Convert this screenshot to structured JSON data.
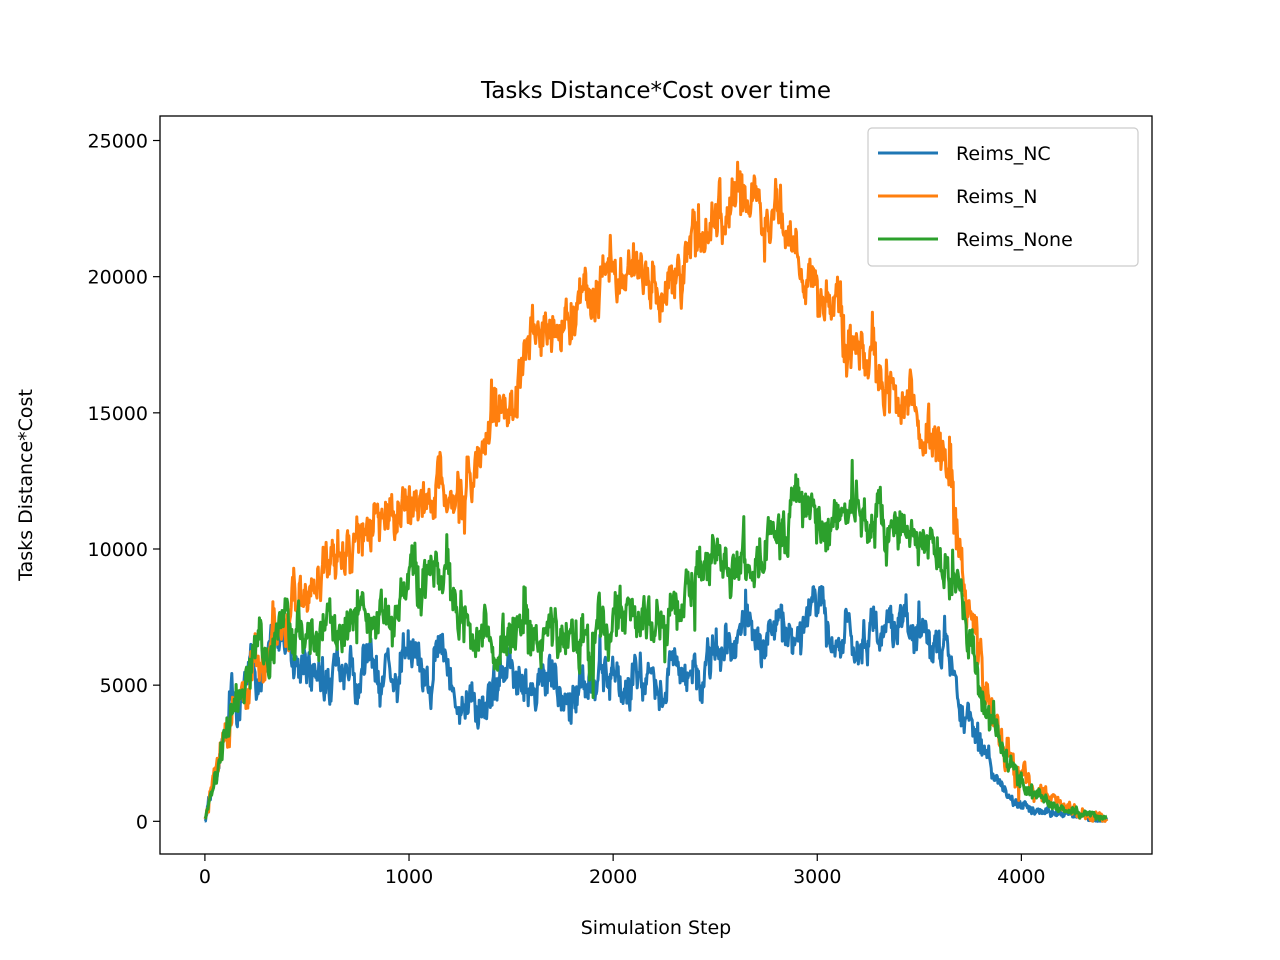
{
  "chart_data": {
    "type": "line",
    "title": "Tasks Distance*Cost over time",
    "xlabel": "Simulation Step",
    "ylabel": "Tasks Distance*Cost",
    "xlim": [
      -220,
      4640
    ],
    "ylim": [
      -1200,
      25900
    ],
    "xticks": [
      0,
      1000,
      2000,
      3000,
      4000
    ],
    "xtick_labels": [
      "0",
      "1000",
      "2000",
      "3000",
      "4000"
    ],
    "yticks": [
      0,
      5000,
      10000,
      15000,
      20000,
      25000
    ],
    "ytick_labels": [
      "0",
      "5000",
      "10000",
      "15000",
      "20000",
      "25000"
    ],
    "grid": false,
    "legend_position": "top-right",
    "series": [
      {
        "name": "Reims_NC",
        "color": "#1f77b4",
        "noise": 900,
        "x": [
          0,
          100,
          200,
          300,
          380,
          450,
          550,
          700,
          900,
          1000,
          1100,
          1150,
          1200,
          1250,
          1400,
          1600,
          1800,
          1900,
          2000,
          2200,
          2400,
          2500,
          2600,
          2800,
          3000,
          3200,
          3400,
          3550,
          3620,
          3680,
          3750,
          3850,
          3950,
          4050,
          4200,
          4420
        ],
        "y": [
          0,
          3600,
          5200,
          6300,
          6700,
          6000,
          5300,
          5200,
          5200,
          5700,
          5800,
          6200,
          4900,
          4700,
          4800,
          5000,
          5000,
          5100,
          5100,
          5300,
          5800,
          6400,
          6600,
          6900,
          7000,
          6900,
          7200,
          7100,
          6700,
          5200,
          3600,
          1800,
          800,
          400,
          250,
          80
        ]
      },
      {
        "name": "Reims_N",
        "color": "#ff7f0e",
        "noise": 1100,
        "x": [
          0,
          100,
          200,
          300,
          380,
          450,
          550,
          700,
          900,
          1000,
          1100,
          1200,
          1300,
          1400,
          1500,
          1600,
          1700,
          1800,
          1900,
          2000,
          2100,
          2200,
          2300,
          2400,
          2500,
          2600,
          2700,
          2800,
          2900,
          3000,
          3100,
          3200,
          3300,
          3400,
          3500,
          3600,
          3650,
          3700,
          3750,
          3800,
          3850,
          3900,
          4000,
          4100,
          4200,
          4300,
          4420
        ],
        "y": [
          0,
          3400,
          5000,
          6500,
          7800,
          8000,
          9000,
          10000,
          11200,
          11800,
          12400,
          12500,
          12800,
          13500,
          15500,
          17500,
          18000,
          18500,
          19500,
          20000,
          20300,
          20000,
          20500,
          21500,
          22200,
          22700,
          22900,
          22300,
          21300,
          19500,
          18500,
          17300,
          16500,
          15600,
          14800,
          13500,
          12000,
          10000,
          7500,
          5600,
          4200,
          3000,
          1600,
          900,
          650,
          400,
          100
        ]
      },
      {
        "name": "Reims_None",
        "color": "#2ca02c",
        "noise": 1000,
        "x": [
          0,
          100,
          200,
          300,
          380,
          450,
          550,
          700,
          800,
          900,
          1000,
          1100,
          1150,
          1200,
          1300,
          1400,
          1600,
          1800,
          1900,
          2000,
          2200,
          2300,
          2400,
          2500,
          2600,
          2700,
          2800,
          2900,
          3000,
          3100,
          3200,
          3300,
          3400,
          3500,
          3600,
          3650,
          3700,
          3750,
          3800,
          3850,
          3900,
          4000,
          4100,
          4200,
          4300,
          4420
        ],
        "y": [
          0,
          3600,
          5400,
          6600,
          7400,
          7200,
          7000,
          7200,
          7000,
          7500,
          8700,
          9300,
          9100,
          8600,
          7000,
          6500,
          6800,
          6800,
          6600,
          7200,
          7900,
          7800,
          8700,
          9500,
          9900,
          10100,
          10500,
          10900,
          11200,
          11500,
          11600,
          11300,
          10800,
          10400,
          10000,
          9000,
          7800,
          6200,
          4800,
          3800,
          2800,
          1500,
          800,
          500,
          350,
          80
        ]
      }
    ]
  }
}
